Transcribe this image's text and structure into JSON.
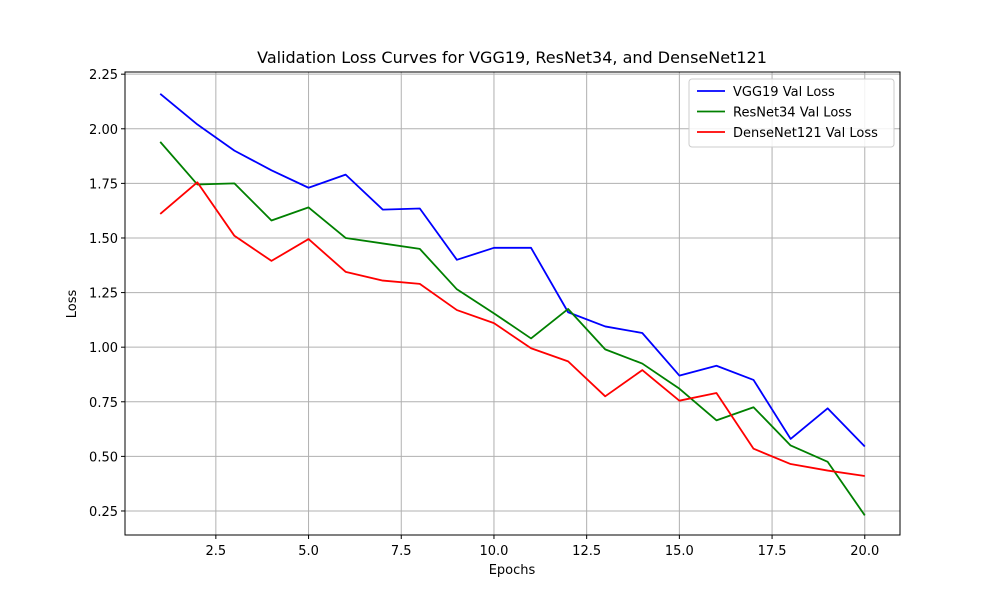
{
  "chart_data": {
    "type": "line",
    "title": "Validation Loss Curves for VGG19, ResNet34, and DenseNet121",
    "xlabel": "Epochs",
    "ylabel": "Loss",
    "xlim": [
      0.05,
      20.95
    ],
    "ylim": [
      0.14,
      2.26
    ],
    "xticks": [
      2.5,
      5.0,
      7.5,
      10.0,
      12.5,
      15.0,
      17.5,
      20.0
    ],
    "xtick_labels": [
      "2.5",
      "5.0",
      "7.5",
      "10.0",
      "12.5",
      "15.0",
      "17.5",
      "20.0"
    ],
    "yticks": [
      0.25,
      0.5,
      0.75,
      1.0,
      1.25,
      1.5,
      1.75,
      2.0,
      2.25
    ],
    "ytick_labels": [
      "0.25",
      "0.50",
      "0.75",
      "1.00",
      "1.25",
      "1.50",
      "1.75",
      "2.00",
      "2.25"
    ],
    "grid": true,
    "legend_position": "top-right",
    "x": [
      1,
      2,
      3,
      4,
      5,
      6,
      7,
      8,
      9,
      10,
      11,
      12,
      13,
      14,
      15,
      16,
      17,
      18,
      19,
      20
    ],
    "series": [
      {
        "name": "VGG19 Val Loss",
        "color": "#0000ff",
        "values": [
          2.16,
          2.02,
          1.9,
          1.81,
          1.73,
          1.79,
          1.63,
          1.635,
          1.4,
          1.455,
          1.455,
          1.16,
          1.095,
          1.065,
          0.87,
          0.915,
          0.85,
          0.58,
          0.72,
          0.545
        ]
      },
      {
        "name": "ResNet34 Val Loss",
        "color": "#008000",
        "values": [
          1.94,
          1.745,
          1.75,
          1.58,
          1.64,
          1.5,
          1.475,
          1.45,
          1.265,
          1.155,
          1.04,
          1.175,
          0.99,
          0.925,
          0.81,
          0.665,
          0.725,
          0.55,
          0.475,
          0.23
        ]
      },
      {
        "name": "DenseNet121 Val Loss",
        "color": "#ff0000",
        "values": [
          1.61,
          1.755,
          1.51,
          1.395,
          1.495,
          1.345,
          1.305,
          1.29,
          1.17,
          1.11,
          0.995,
          0.935,
          0.775,
          0.895,
          0.755,
          0.79,
          0.535,
          0.465,
          0.435,
          0.41
        ]
      }
    ]
  }
}
